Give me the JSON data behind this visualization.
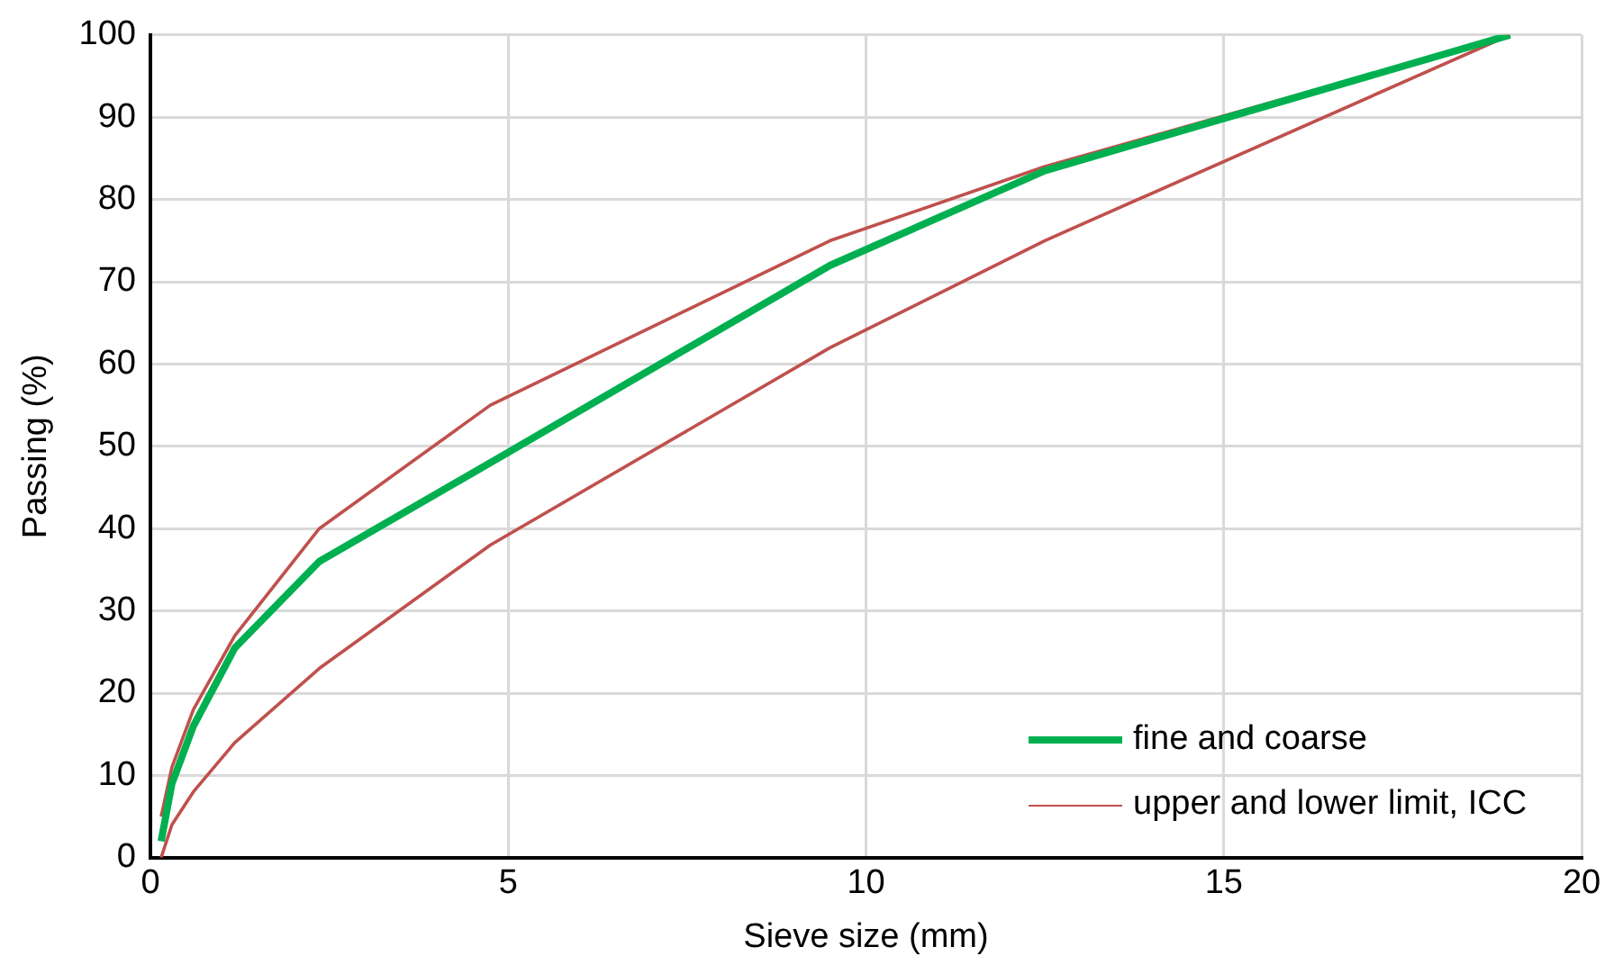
{
  "chart_data": {
    "type": "line",
    "xlabel": "Sieve size (mm)",
    "ylabel": "Passing (%)",
    "xlim": [
      0,
      20
    ],
    "xticks": [
      0,
      5,
      10,
      15,
      20
    ],
    "ylim": [
      0,
      100
    ],
    "yticks": [
      0,
      10,
      20,
      30,
      40,
      50,
      60,
      70,
      80,
      90,
      100
    ],
    "grid": true,
    "legend": "bottom right",
    "marker": "none",
    "line_style": "solid",
    "series": [
      {
        "name": "fine and coarse",
        "color": "#00b050",
        "x": [
          0.15,
          0.3,
          0.6,
          1.18,
          2.36,
          4.75,
          9.5,
          12.5,
          19
        ],
        "values": [
          2,
          9,
          16,
          25.5,
          36,
          48,
          72,
          83.5,
          100
        ]
      },
      {
        "name": "upper and lower limit, ICC",
        "color": "#c0504d",
        "x": [
          0.15,
          0.3,
          0.6,
          1.18,
          2.36,
          4.75,
          9.5,
          12.5,
          19
        ],
        "values": [
          5,
          11,
          18,
          27,
          40,
          55,
          75,
          84,
          100
        ]
      },
      {
        "color": "#c0504d",
        "x": [
          0.15,
          0.3,
          0.6,
          1.18,
          2.36,
          4.75,
          9.5,
          12.5,
          19
        ],
        "values": [
          0,
          4,
          8,
          14,
          23,
          38,
          62,
          75,
          100
        ]
      }
    ]
  }
}
